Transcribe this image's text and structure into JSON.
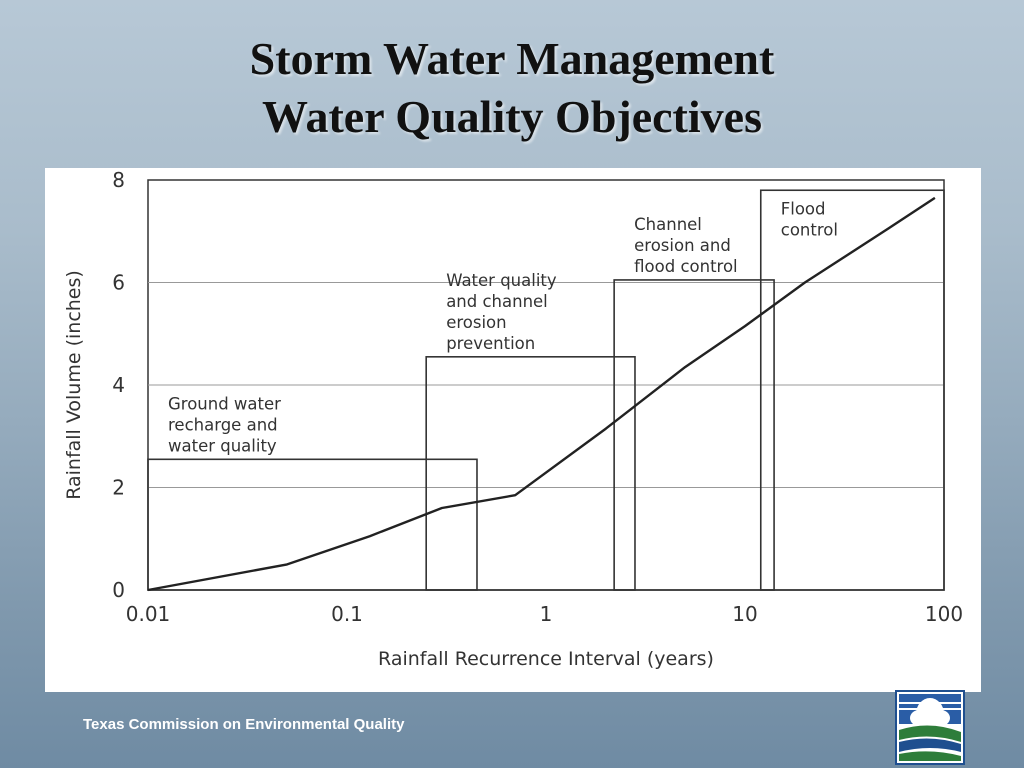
{
  "slide": {
    "title_line1": "Storm Water Management",
    "title_line2": "Water Quality Objectives",
    "footer": "Texas Commission on Environmental Quality",
    "logo_icon": "tceq-logo-icon"
  },
  "chart_data": {
    "type": "line",
    "title": "",
    "xlabel": "Rainfall Recurrence Interval (years)",
    "ylabel": "Rainfall Volume (inches)",
    "x_scale": "log",
    "xlim": [
      0.01,
      100
    ],
    "ylim": [
      0,
      8
    ],
    "x_ticks": [
      {
        "value": 0.01,
        "label": "0.01"
      },
      {
        "value": 0.1,
        "label": "0.1"
      },
      {
        "value": 1,
        "label": "1"
      },
      {
        "value": 10,
        "label": "10"
      },
      {
        "value": 100,
        "label": "100"
      }
    ],
    "y_ticks": [
      {
        "value": 0,
        "label": "0"
      },
      {
        "value": 2,
        "label": "2"
      },
      {
        "value": 4,
        "label": "4"
      },
      {
        "value": 6,
        "label": "6"
      },
      {
        "value": 8,
        "label": "8"
      }
    ],
    "grid": "horizontal",
    "series": [
      {
        "x": [
          0.01,
          0.05,
          0.13,
          0.3,
          0.7,
          2,
          5,
          10,
          20,
          50,
          90
        ],
        "y": [
          0,
          0.5,
          1.05,
          1.6,
          1.85,
          3.15,
          4.35,
          5.15,
          6.0,
          7.0,
          7.65
        ]
      }
    ],
    "regions": [
      {
        "label_lines": [
          "Ground water",
          "recharge and",
          "water quality"
        ],
        "x_start": 0.01,
        "x_end": 0.45,
        "y_top": 2.55
      },
      {
        "label_lines": [
          "Water quality",
          "and channel",
          "erosion",
          "prevention"
        ],
        "x_start": 0.25,
        "x_end": 2.8,
        "y_top": 4.55
      },
      {
        "label_lines": [
          "Channel",
          "erosion and",
          "flood control"
        ],
        "x_start": 2.2,
        "x_end": 14,
        "y_top": 6.05
      },
      {
        "label_lines": [
          "Flood",
          "control"
        ],
        "x_start": 12,
        "x_end": 100,
        "y_top": 7.8
      }
    ],
    "line_color": "#222222"
  }
}
